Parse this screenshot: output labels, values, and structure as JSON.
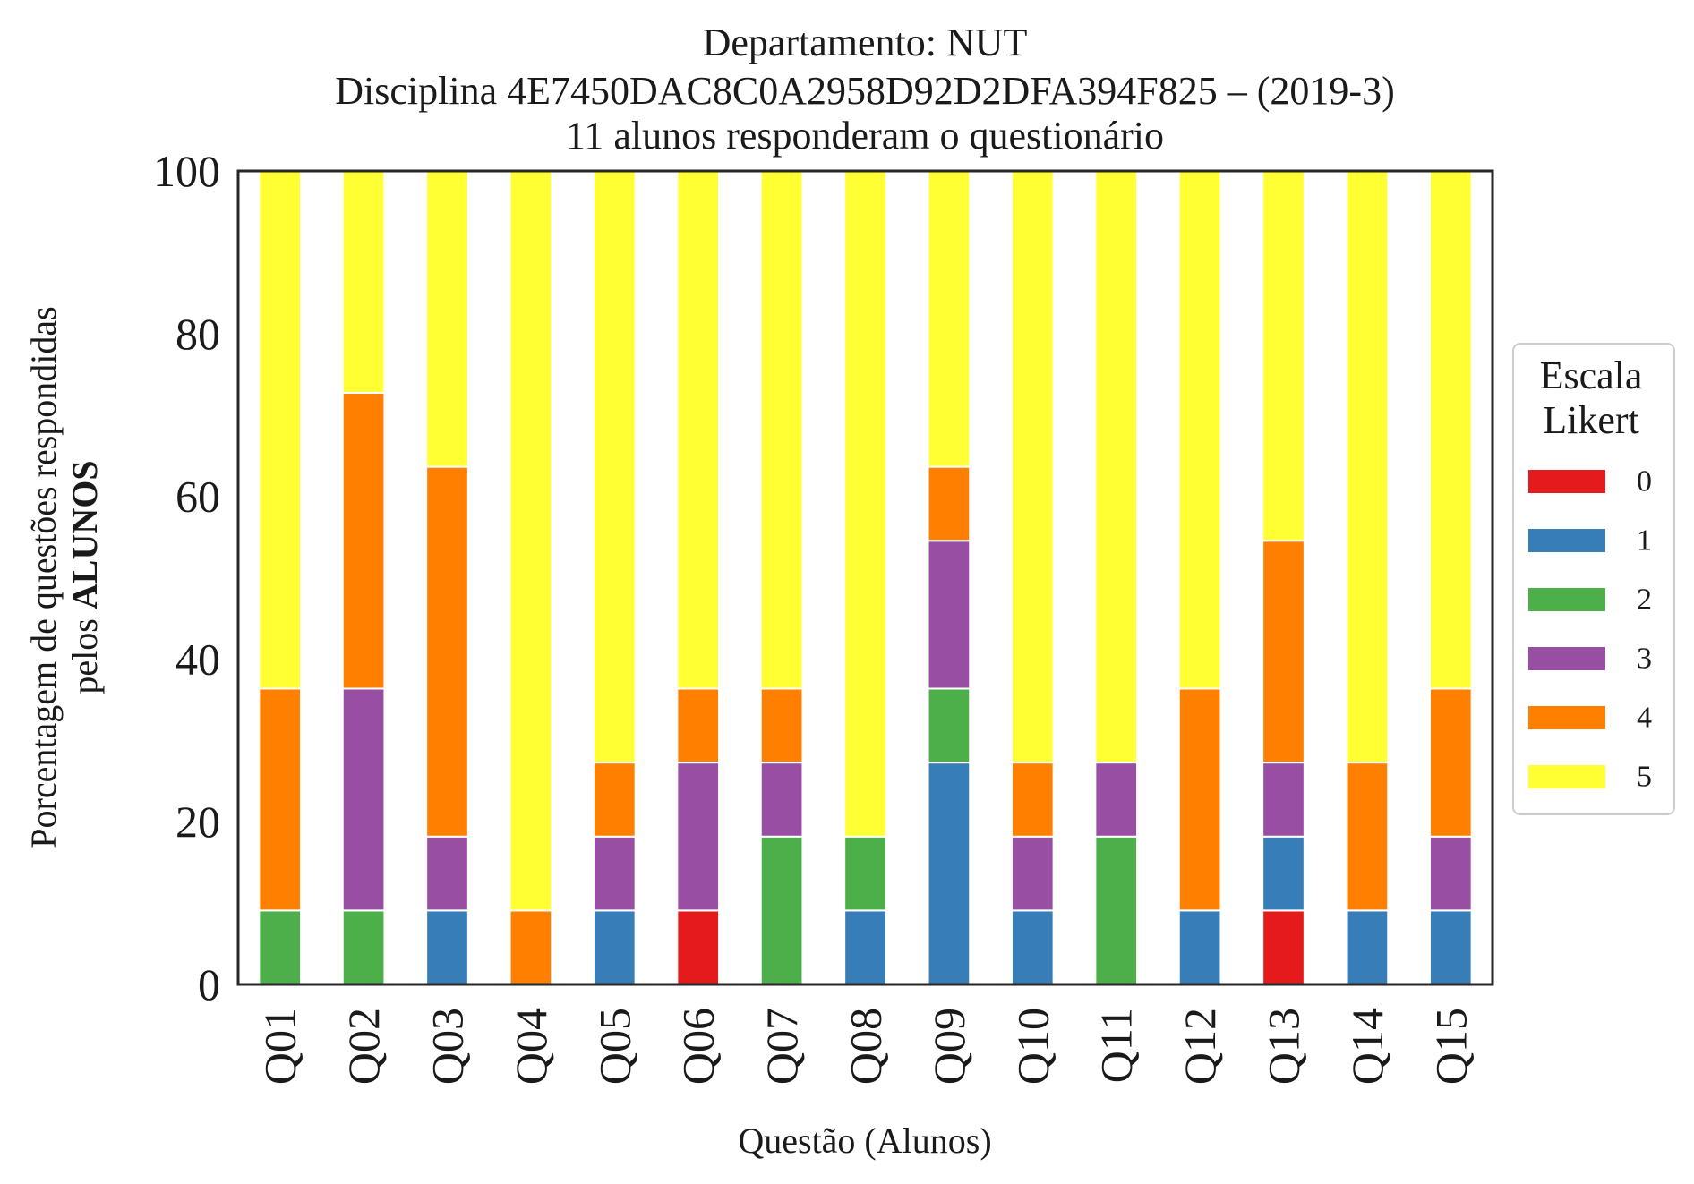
{
  "chart_data": {
    "type": "bar",
    "stacked": true,
    "title_lines": [
      "Departamento: NUT",
      "Disciplina 4E7450DAC8C0A2958D92D2DFA394F825 – (2019-3)",
      "11 alunos responderam o questionário"
    ],
    "xlabel": "Questão (Alunos)",
    "ylabel_lines": [
      "Porcentagem de questões respondidas",
      "pelos ALUNOS"
    ],
    "ylabel_line2_prefix": "pelos ",
    "ylabel_line2_bold": "ALUNOS",
    "ylim": [
      0,
      100
    ],
    "yticks": [
      0,
      20,
      40,
      60,
      80,
      100
    ],
    "categories": [
      "Q01",
      "Q02",
      "Q03",
      "Q04",
      "Q05",
      "Q06",
      "Q07",
      "Q08",
      "Q09",
      "Q10",
      "Q11",
      "Q12",
      "Q13",
      "Q14",
      "Q15"
    ],
    "series": [
      {
        "name": "0",
        "color": "#e41a1c",
        "values": [
          0,
          0,
          0,
          0,
          0,
          9.09,
          0,
          0,
          0,
          0,
          0,
          0,
          9.09,
          0,
          0
        ]
      },
      {
        "name": "1",
        "color": "#377eb8",
        "values": [
          0,
          0,
          9.09,
          0,
          9.09,
          0,
          0,
          9.09,
          27.27,
          9.09,
          0,
          9.09,
          9.09,
          9.09,
          9.09
        ]
      },
      {
        "name": "2",
        "color": "#4daf4a",
        "values": [
          9.09,
          9.09,
          0,
          0,
          0,
          0,
          18.18,
          9.09,
          9.09,
          0,
          18.18,
          0,
          0,
          0,
          0
        ]
      },
      {
        "name": "3",
        "color": "#984ea3",
        "values": [
          0,
          27.27,
          9.09,
          0,
          9.09,
          18.18,
          9.09,
          0,
          18.18,
          9.09,
          9.09,
          0,
          9.09,
          0,
          9.09
        ]
      },
      {
        "name": "4",
        "color": "#ff7f00",
        "values": [
          27.27,
          36.36,
          45.45,
          9.09,
          9.09,
          9.09,
          9.09,
          0,
          9.09,
          9.09,
          0,
          27.27,
          27.27,
          18.18,
          18.18
        ]
      },
      {
        "name": "5",
        "color": "#ffff33",
        "values": [
          63.64,
          27.27,
          36.36,
          90.91,
          72.73,
          63.64,
          63.64,
          81.82,
          36.36,
          72.73,
          72.73,
          63.64,
          45.45,
          72.73,
          63.64
        ]
      }
    ],
    "legend": {
      "title_lines": [
        "Escala",
        "Likert"
      ],
      "placement": "right-center"
    },
    "grid": false
  }
}
